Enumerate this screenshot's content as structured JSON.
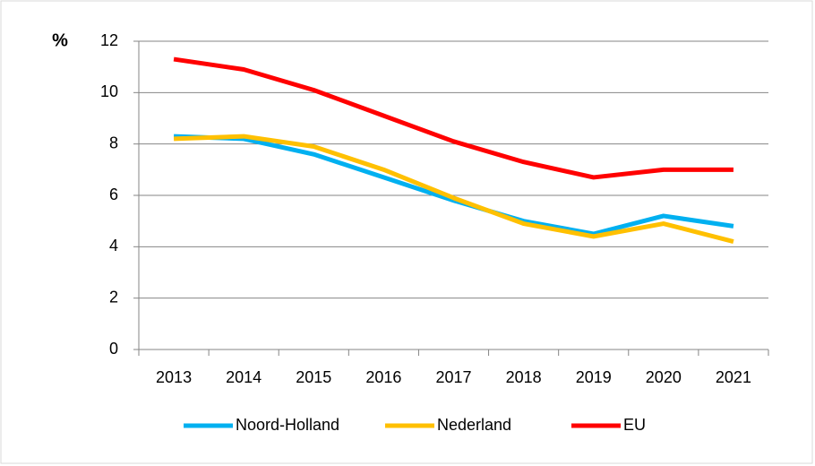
{
  "chart_data": {
    "type": "line",
    "y_label": "%",
    "categories": [
      "2013",
      "2014",
      "2015",
      "2016",
      "2017",
      "2018",
      "2019",
      "2020",
      "2021"
    ],
    "series": [
      {
        "name": "Noord-Holland",
        "color": "#00b0f0",
        "values": [
          8.3,
          8.2,
          7.6,
          6.7,
          5.8,
          5.0,
          4.5,
          5.2,
          4.8
        ]
      },
      {
        "name": "Nederland",
        "color": "#ffc000",
        "values": [
          8.2,
          8.3,
          7.9,
          7.0,
          5.9,
          4.9,
          4.4,
          4.9,
          4.2
        ]
      },
      {
        "name": "EU",
        "color": "#ff0000",
        "values": [
          11.3,
          10.9,
          10.1,
          9.1,
          8.1,
          7.3,
          6.7,
          7.0,
          7.0
        ]
      }
    ],
    "ylim": [
      0,
      12
    ],
    "yticks": [
      0,
      2,
      4,
      6,
      8,
      10,
      12
    ],
    "grid": true,
    "legend": "bottom"
  }
}
